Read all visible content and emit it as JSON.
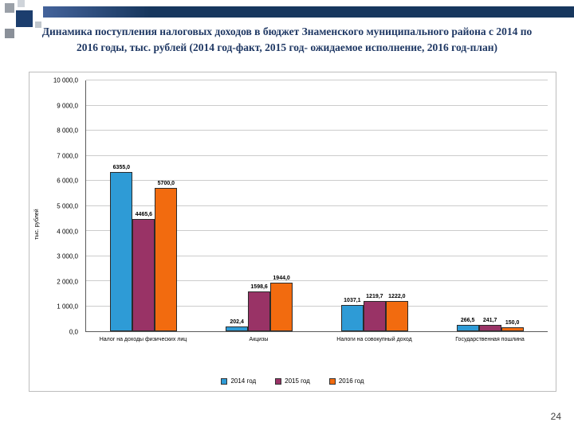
{
  "slide": {
    "page_number": "24"
  },
  "title": {
    "text": "Динамика поступления налоговых доходов в бюджет Знаменского муниципального района с 2014 по 2016 годы, тыс. рублей (2014 год-факт, 2015 год- ожидаемое исполнение, 2016 год-план)"
  },
  "chart_data": {
    "type": "bar",
    "title": "",
    "xlabel": "",
    "ylabel": "тыс. рублей",
    "ylim": [
      0,
      10000
    ],
    "ytick_interval": 1000,
    "ytick_labels_ascending": [
      "0,0",
      "1 000,0",
      "2 000,0",
      "3 000,0",
      "4 000,0",
      "5 000,0",
      "6 000,0",
      "7 000,0",
      "8 000,0",
      "9 000,0",
      "10 000,0"
    ],
    "grid": true,
    "legend_position": "bottom",
    "categories": [
      "Налог на доходы физических лиц",
      "Акцизы",
      "Налоги на совокупный доход",
      "Государственная пошлина"
    ],
    "series": [
      {
        "name": "2014 год",
        "color": "#2e9bd6",
        "values": [
          6355.0,
          202.4,
          1037.1,
          266.5
        ],
        "labels": [
          "6355,0",
          "202,4",
          "1037,1",
          "266,5"
        ]
      },
      {
        "name": "2015 год",
        "color": "#993366",
        "values": [
          4465.6,
          1598.6,
          1219.7,
          241.7
        ],
        "labels": [
          "4465,6",
          "1598,6",
          "1219,7",
          "241,7"
        ]
      },
      {
        "name": "2016 год",
        "color": "#f26b0f",
        "values": [
          5700.0,
          1944.0,
          1222.0,
          150.0
        ],
        "labels": [
          "5700,0",
          "1944,0",
          "1222,0",
          "150,0"
        ]
      }
    ]
  },
  "decoration": {
    "bar_color": "#17375e"
  }
}
